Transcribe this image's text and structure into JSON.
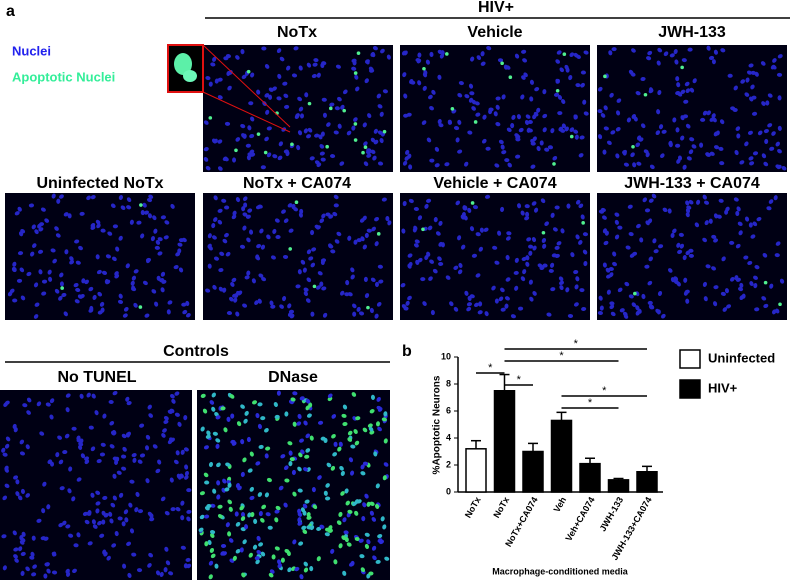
{
  "panel_a": {
    "label": "a",
    "group_header": "HIV+",
    "legend": [
      "Nuclei",
      "Apoptotic Nuclei"
    ],
    "row1_headers": [
      "NoTx",
      "Vehicle",
      "JWH-133"
    ],
    "row2_headers": [
      "Uninfected NoTx",
      "NoTx + CA074",
      "Vehicle + CA074",
      "JWH-133 + CA074"
    ],
    "controls": {
      "title": "Controls",
      "headers": [
        "No TUNEL",
        "DNase"
      ]
    }
  },
  "panel_b": {
    "label": "b"
  },
  "chart_data": {
    "type": "bar",
    "ylabel": "%Apoptotic Neurons",
    "xlabel": "Macrophage-conditioned media",
    "categories": [
      "NoTx",
      "NoTx",
      "NoTx+CA074",
      "Veh",
      "Veh+CA074",
      "JWH-133",
      "JWH-133+CA074"
    ],
    "series": [
      {
        "name": "Uninfected",
        "color": "#ffffff",
        "values": [
          3.2,
          null,
          null,
          null,
          null,
          null,
          null
        ],
        "errors": [
          0.6,
          null,
          null,
          null,
          null,
          null,
          null
        ]
      },
      {
        "name": "HIV+",
        "color": "#000000",
        "values": [
          null,
          7.5,
          3.0,
          5.3,
          2.1,
          0.9,
          1.5
        ],
        "errors": [
          null,
          1.2,
          0.6,
          0.6,
          0.4,
          0.1,
          0.4
        ]
      }
    ],
    "ylim": [
      0,
      10
    ],
    "yticks": [
      0,
      2,
      4,
      6,
      8,
      10
    ],
    "significance": [
      "*",
      "*",
      "*",
      "*",
      "*",
      "*"
    ]
  }
}
